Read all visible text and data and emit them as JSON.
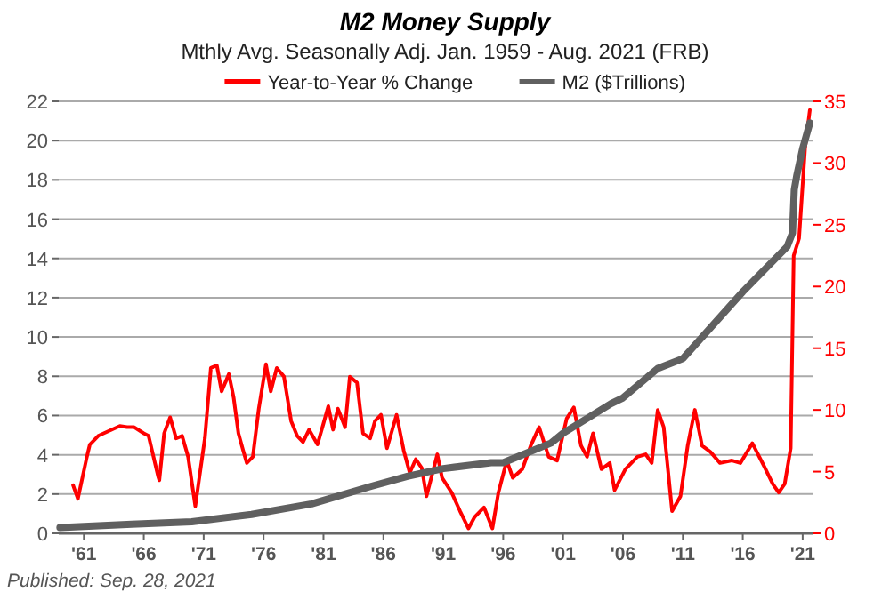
{
  "chart_data": {
    "type": "line",
    "title": "M2 Money Supply",
    "subtitle": "Mthly Avg. Seasonally Adj. Jan. 1959 - Aug. 2021  (FRB)",
    "annotations": [
      "Published: Sep. 28, 2021"
    ],
    "xlim": [
      1958.9,
      2021.9
    ],
    "xticks": [
      {
        "value": 1961,
        "label": "'61"
      },
      {
        "value": 1966,
        "label": "'66"
      },
      {
        "value": 1971,
        "label": "'71"
      },
      {
        "value": 1976,
        "label": "'76"
      },
      {
        "value": 1981,
        "label": "'81"
      },
      {
        "value": 1986,
        "label": "'86"
      },
      {
        "value": 1991,
        "label": "'91"
      },
      {
        "value": 1996,
        "label": "'96"
      },
      {
        "value": 2001,
        "label": "'01"
      },
      {
        "value": 2006,
        "label": "'06"
      },
      {
        "value": 2011,
        "label": "'11"
      },
      {
        "value": 2016,
        "label": "'16"
      },
      {
        "value": 2021,
        "label": "'21"
      }
    ],
    "ylim": [
      0,
      22
    ],
    "yticks": [
      0,
      2,
      4,
      6,
      8,
      10,
      12,
      14,
      16,
      18,
      20,
      22
    ],
    "y2lim": [
      0,
      35
    ],
    "y2ticks": [
      0,
      5,
      10,
      15,
      20,
      25,
      30,
      35
    ],
    "grid": "y",
    "legend": "top",
    "series": [
      {
        "name": "Year-to-Year % Change",
        "color": "#ff0000",
        "axis": "y2",
        "x": [
          1960.1,
          1960.5,
          1961.25,
          1961.5,
          1962.2,
          1964.0,
          1964.6,
          1965.2,
          1966.0,
          1966.4,
          1967.2,
          1967.3,
          1967.7,
          1968.2,
          1968.7,
          1969.2,
          1969.7,
          1970.3,
          1971.1,
          1971.6,
          1972.1,
          1972.5,
          1973.1,
          1973.5,
          1973.9,
          1974.3,
          1974.6,
          1975.1,
          1975.6,
          1976.2,
          1976.6,
          1977.1,
          1977.7,
          1978.3,
          1978.8,
          1979.3,
          1979.8,
          1980.5,
          1981.0,
          1981.4,
          1981.8,
          1982.2,
          1982.8,
          1983.2,
          1983.8,
          1984.3,
          1984.9,
          1985.3,
          1985.8,
          1986.3,
          1987.1,
          1987.7,
          1988.2,
          1988.7,
          1989.2,
          1989.6,
          1990.5,
          1990.9,
          1991.7,
          1992.4,
          1993.1,
          1993.6,
          1994.4,
          1995.1,
          1995.6,
          1996.3,
          1996.8,
          1997.6,
          1998.3,
          1999.0,
          1999.8,
          2000.5,
          2001.3,
          2001.9,
          2002.5,
          2003.0,
          2003.5,
          2004.2,
          2004.9,
          2005.3,
          2006.2,
          2007.2,
          2007.9,
          2008.4,
          2008.9,
          2009.4,
          2010.1,
          2010.8,
          2011.4,
          2012.0,
          2012.6,
          2013.3,
          2014.1,
          2015.1,
          2015.8,
          2016.8,
          2017.8,
          2018.5,
          2019.0,
          2019.5,
          2020.0,
          2020.25,
          2020.7,
          2021.2,
          2021.6
        ],
        "values": [
          3.9,
          2.8,
          6.2,
          7.2,
          7.9,
          8.7,
          8.6,
          8.6,
          8.1,
          7.9,
          4.6,
          4.3,
          8.1,
          9.4,
          7.7,
          7.9,
          6.2,
          2.2,
          7.7,
          13.4,
          13.6,
          11.5,
          12.9,
          11.0,
          8.1,
          6.7,
          5.7,
          6.2,
          10.1,
          13.7,
          11.5,
          13.4,
          12.7,
          9.1,
          7.9,
          7.4,
          8.4,
          7.2,
          8.9,
          10.3,
          8.4,
          10.1,
          8.6,
          12.7,
          12.2,
          8.1,
          7.7,
          9.1,
          9.6,
          6.9,
          9.6,
          6.7,
          4.9,
          6.0,
          5.3,
          3.0,
          6.4,
          4.5,
          3.3,
          1.8,
          0.4,
          1.3,
          2.1,
          0.4,
          3.3,
          5.9,
          4.5,
          5.2,
          7.1,
          8.6,
          6.2,
          5.9,
          9.3,
          10.2,
          7.1,
          6.2,
          8.1,
          5.2,
          5.7,
          3.5,
          5.2,
          6.2,
          6.4,
          5.7,
          10.0,
          8.6,
          1.8,
          3.0,
          7.1,
          10.0,
          7.1,
          6.6,
          5.7,
          5.9,
          5.7,
          7.3,
          5.4,
          4.0,
          3.3,
          4.0,
          6.9,
          22.5,
          23.9,
          31.2,
          34.3
        ]
      },
      {
        "name": "M2 ($Trillions)",
        "color": "#606060",
        "x": [
          1959.0,
          1965.0,
          1970.0,
          1975.0,
          1980.0,
          1985.0,
          1988.0,
          1991.0,
          1995.0,
          1996.0,
          2000.0,
          2001.0,
          2005.0,
          2006.0,
          2008.9,
          2011.0,
          2016.0,
          2019.7,
          2020.15,
          2020.3,
          2020.5,
          2021.0,
          2021.6
        ],
        "values": [
          0.29,
          0.46,
          0.59,
          0.96,
          1.5,
          2.4,
          2.9,
          3.3,
          3.6,
          3.6,
          4.6,
          5.1,
          6.6,
          6.9,
          8.4,
          8.9,
          12.3,
          14.6,
          15.3,
          17.5,
          18.2,
          19.6,
          20.9
        ]
      }
    ]
  }
}
